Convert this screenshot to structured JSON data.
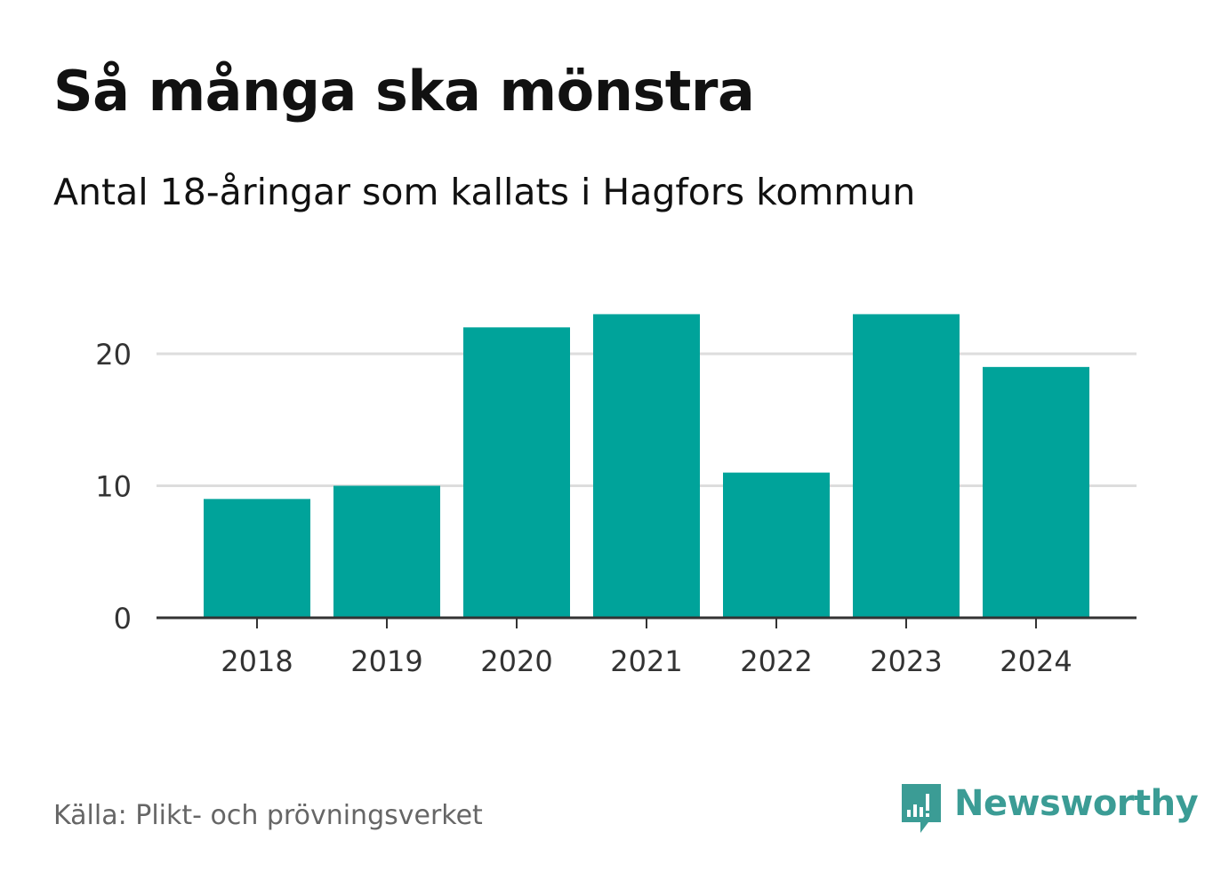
{
  "header": {
    "title": "Så många ska mönstra",
    "subtitle": "Antal 18-åringar som kallats i Hagfors kommun"
  },
  "footer": {
    "source": "Källa: Plikt- och prövningsverket",
    "brand": "Newsworthy",
    "brand_icon": "newsworthy-logo-icon"
  },
  "colors": {
    "bar": "#00a39a",
    "grid": "#dddddd",
    "axis": "#333333",
    "brand": "#3b9c95"
  },
  "chart_data": {
    "type": "bar",
    "categories": [
      "2018",
      "2019",
      "2020",
      "2021",
      "2022",
      "2023",
      "2024"
    ],
    "values": [
      9,
      10,
      22,
      23,
      11,
      23,
      19
    ],
    "yticks": [
      0,
      10,
      20
    ],
    "ylim": [
      0,
      23
    ],
    "grid": true,
    "legend": "none"
  }
}
